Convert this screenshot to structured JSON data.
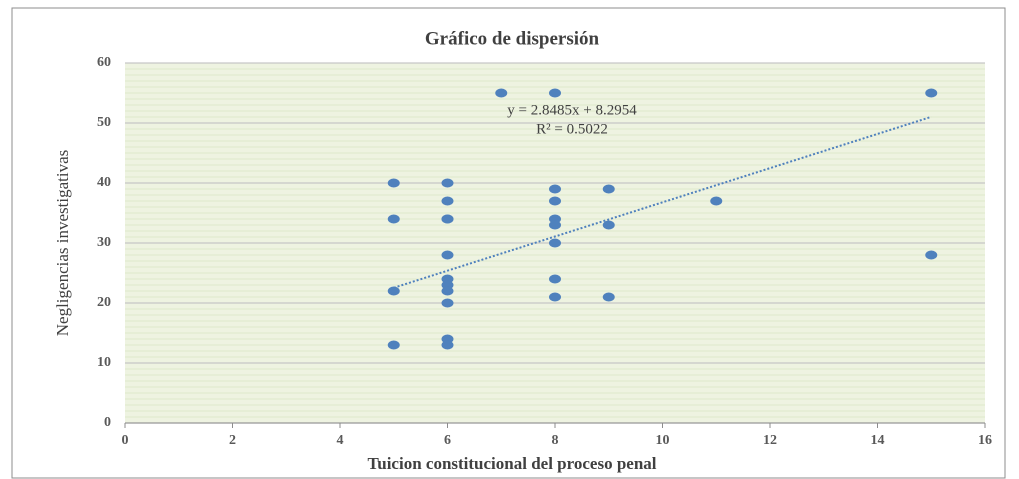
{
  "chart_data": {
    "type": "scatter",
    "title": "Gráfico de dispersión",
    "xlabel": "Tuicion constitucional del proceso penal",
    "ylabel": "Negligencias investigativas",
    "x": [
      5,
      5,
      5,
      5,
      6,
      6,
      6,
      6,
      6,
      6,
      6,
      6,
      6,
      6,
      6,
      7,
      8,
      8,
      8,
      8,
      8,
      8,
      8,
      8,
      9,
      9,
      9,
      11,
      15,
      15
    ],
    "y": [
      40,
      34,
      22,
      13,
      40,
      37,
      34,
      34,
      28,
      24,
      23,
      22,
      20,
      14,
      13,
      55,
      55,
      39,
      37,
      34,
      33,
      30,
      24,
      21,
      39,
      33,
      21,
      37,
      55,
      28
    ],
    "color": "#4f81bd",
    "xlim": [
      0,
      16
    ],
    "xticks": [
      0,
      2,
      4,
      6,
      8,
      10,
      12,
      14,
      16
    ],
    "ylim": [
      0,
      60
    ],
    "yticks": [
      0,
      10,
      20,
      30,
      40,
      50,
      60
    ],
    "grid": true,
    "trendline": {
      "slope": 2.8485,
      "intercept": 8.2954,
      "equation": "y = 2.8485x  + 8.2954",
      "r2": "R² = 0.5022",
      "color": "#4f81bd"
    }
  }
}
